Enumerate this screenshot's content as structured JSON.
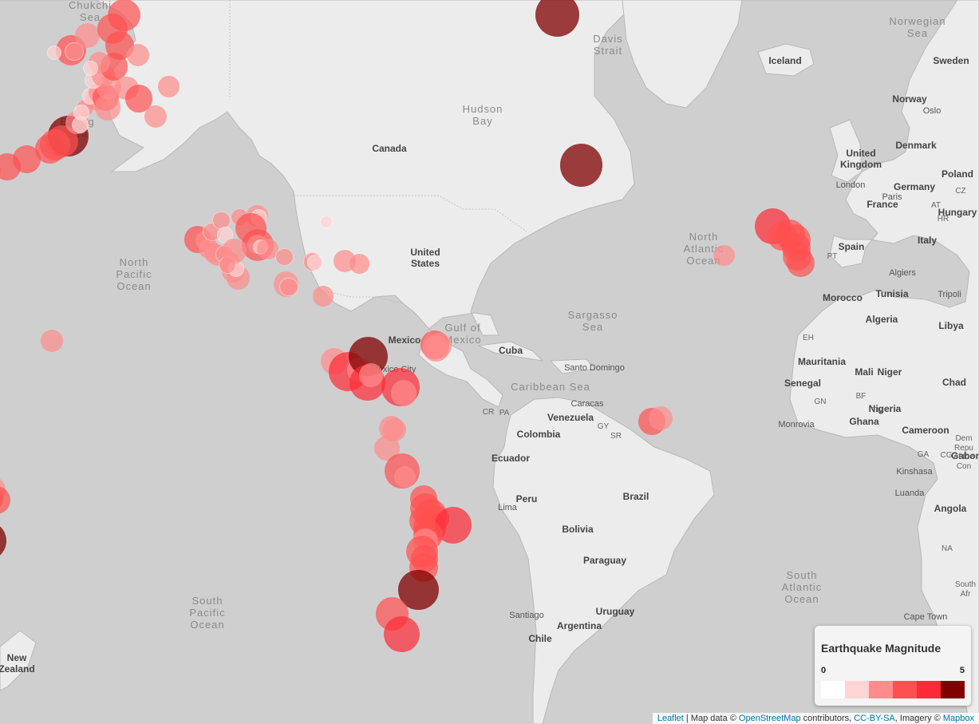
{
  "map": {
    "ocean_labels": [
      {
        "name": "north-pacific-ocean",
        "text": "North\nPacific\nOcean"
      },
      {
        "name": "north-atlantic-ocean",
        "text": "North\nAtlantic\nOcean"
      },
      {
        "name": "south-pacific-ocean",
        "text": "South\nPacific\nOcean"
      },
      {
        "name": "south-atlantic-ocean",
        "text": "South\nAtlantic\nOcean"
      },
      {
        "name": "bering-sea",
        "text": "Bering\nSea"
      },
      {
        "name": "chukchi-sea",
        "text": "Chukchi\nSea"
      },
      {
        "name": "hudson-bay",
        "text": "Hudson\nBay"
      },
      {
        "name": "gulf-of-mexico",
        "text": "Gulf of\nMexico"
      },
      {
        "name": "sargasso-sea",
        "text": "Sargasso\nSea"
      },
      {
        "name": "caribbean-sea",
        "text": "Caribbean Sea"
      },
      {
        "name": "davis-strait",
        "text": "Davis\nStrait"
      },
      {
        "name": "norwegian-sea",
        "text": "Norwegian\nSea"
      }
    ],
    "country_labels": [
      "Canada",
      "United\nStates",
      "Mexico",
      "Cuba",
      "Venezuela",
      "Colombia",
      "Ecuador",
      "Peru",
      "Brazil",
      "Bolivia",
      "Paraguay",
      "Uruguay",
      "Argentina",
      "Chile",
      "Iceland",
      "Norway",
      "Sweden",
      "Denmark",
      "United\nKingdom",
      "Germany",
      "Poland",
      "France",
      "Spain",
      "Italy",
      "Hungary",
      "Morocco",
      "Algeria",
      "Libya",
      "Tunisia",
      "Mali",
      "Niger",
      "Chad",
      "Mauritania",
      "Senegal",
      "Nigeria",
      "Cameroon",
      "Angola",
      "Ghana",
      "Gabon",
      "New\nZealand"
    ],
    "small_labels": [
      "GY",
      "SR",
      "PA",
      "CR",
      "PT",
      "AT",
      "CZ",
      "HR",
      "GN",
      "BF",
      "TG",
      "GA",
      "CG",
      "NA",
      "EH",
      "Dem\nRepu\nof the\nCon",
      "South\nAfr"
    ],
    "city_labels": [
      "Mexico City",
      "Caracas",
      "Santo Domingo",
      "Lima",
      "Santiago",
      "Kinshasa",
      "Luanda",
      "Cape Town",
      "London",
      "Paris",
      "Oslo",
      "Algiers",
      "Tripoli",
      "Monrovia"
    ]
  },
  "quakes": [
    {
      "lon": -178.2,
      "lat": 51.3,
      "mag": 3.2
    },
    {
      "lon": -176.9,
      "lat": 51.6,
      "mag": 2.4
    },
    {
      "lon": -175.6,
      "lat": 51.9,
      "mag": 2.6
    },
    {
      "lon": -171.3,
      "lat": 52.4,
      "mag": 3.0
    },
    {
      "lon": -166.6,
      "lat": 53.5,
      "mag": 3.1
    },
    {
      "lon": -161.0,
      "lat": 55.0,
      "mag": 3.3
    },
    {
      "lon": -156.6,
      "lat": 56.7,
      "mag": 4.6
    },
    {
      "lon": -158.1,
      "lat": 56.0,
      "mag": 3.6
    },
    {
      "lon": -159.8,
      "lat": 55.5,
      "mag": 3.4
    },
    {
      "lon": -154.5,
      "lat": 58.4,
      "mag": 2.6
    },
    {
      "lon": -152.6,
      "lat": 60.2,
      "mag": 2.1
    },
    {
      "lon": -150.0,
      "lat": 61.2,
      "mag": 2.4
    },
    {
      "lon": -151.4,
      "lat": 61.6,
      "mag": 1.8
    },
    {
      "lon": -149.3,
      "lat": 62.0,
      "mag": 2.2
    },
    {
      "lon": -147.6,
      "lat": 61.4,
      "mag": 3.0
    },
    {
      "lon": -146.8,
      "lat": 62.6,
      "mag": 2.8
    },
    {
      "lon": -150.6,
      "lat": 63.4,
      "mag": 1.9
    },
    {
      "lon": -148.1,
      "lat": 63.9,
      "mag": 2.6
    },
    {
      "lon": -145.6,
      "lat": 64.8,
      "mag": 3.1
    },
    {
      "lon": -149.2,
      "lat": 65.2,
      "mag": 2.4
    },
    {
      "lon": -155.9,
      "lat": 66.4,
      "mag": 3.4
    },
    {
      "lon": -155.2,
      "lat": 66.3,
      "mag": 2.1
    },
    {
      "lon": -152.0,
      "lat": 67.8,
      "mag": 2.8
    },
    {
      "lon": -145.9,
      "lat": 68.4,
      "mag": 3.4
    },
    {
      "lon": -143.2,
      "lat": 69.6,
      "mag": 3.6
    },
    {
      "lon": -144.3,
      "lat": 66.9,
      "mag": 3.2
    },
    {
      "lon": -139.8,
      "lat": 66.0,
      "mag": 2.5
    },
    {
      "lon": -142.5,
      "lat": 62.5,
      "mag": 2.6
    },
    {
      "lon": -139.6,
      "lat": 61.3,
      "mag": 3.1
    },
    {
      "lon": -135.5,
      "lat": 59.2,
      "mag": 2.5
    },
    {
      "lon": -132.4,
      "lat": 62.7,
      "mag": 2.4
    },
    {
      "lon": -147.1,
      "lat": 60.3,
      "mag": 2.9
    },
    {
      "lon": -153.5,
      "lat": 59.7,
      "mag": 1.8
    },
    {
      "lon": -151.2,
      "lat": 64.6,
      "mag": 1.7
    },
    {
      "lon": -160.0,
      "lat": 66.2,
      "mag": 1.6
    },
    {
      "lon": -153.8,
      "lat": 58.1,
      "mag": 1.9
    },
    {
      "lon": -125.5,
      "lat": 40.4,
      "mag": 3.0
    },
    {
      "lon": -123.5,
      "lat": 40.2,
      "mag": 2.2
    },
    {
      "lon": -122.8,
      "lat": 38.8,
      "mag": 2.3
    },
    {
      "lon": -121.4,
      "lat": 37.8,
      "mag": 2.2
    },
    {
      "lon": -120.5,
      "lat": 37.4,
      "mag": 2.4
    },
    {
      "lon": -118.9,
      "lat": 37.6,
      "mag": 2.1
    },
    {
      "lon": -117.6,
      "lat": 36.0,
      "mag": 2.3
    },
    {
      "lon": -116.9,
      "lat": 34.3,
      "mag": 2.5
    },
    {
      "lon": -115.6,
      "lat": 33.0,
      "mag": 2.6
    },
    {
      "lon": -116.2,
      "lat": 34.7,
      "mag": 1.8
    },
    {
      "lon": -118.3,
      "lat": 35.5,
      "mag": 2.0
    },
    {
      "lon": -121.9,
      "lat": 41.8,
      "mag": 2.1
    },
    {
      "lon": -119.7,
      "lat": 43.8,
      "mag": 2.0
    },
    {
      "lon": -118.9,
      "lat": 41.2,
      "mag": 1.8
    },
    {
      "lon": -115.3,
      "lat": 44.4,
      "mag": 2.0
    },
    {
      "lon": -111.1,
      "lat": 44.6,
      "mag": 2.4
    },
    {
      "lon": -110.7,
      "lat": 44.3,
      "mag": 1.9
    },
    {
      "lon": -112.6,
      "lat": 42.4,
      "mag": 3.4
    },
    {
      "lon": -110.9,
      "lat": 39.4,
      "mag": 3.6
    },
    {
      "lon": -111.0,
      "lat": 39.5,
      "mag": 2.2
    },
    {
      "lon": -110.2,
      "lat": 39.0,
      "mag": 1.7
    },
    {
      "lon": -108.6,
      "lat": 38.6,
      "mag": 2.4
    },
    {
      "lon": -116.6,
      "lat": 38.2,
      "mag": 2.8
    },
    {
      "lon": -104.5,
      "lat": 37.1,
      "mag": 2.0
    },
    {
      "lon": -97.8,
      "lat": 36.2,
      "mag": 2.1
    },
    {
      "lon": -97.1,
      "lat": 36.0,
      "mag": 1.8
    },
    {
      "lon": -90.0,
      "lat": 36.3,
      "mag": 2.5
    },
    {
      "lon": -86.5,
      "lat": 35.8,
      "mag": 2.2
    },
    {
      "lon": -104.1,
      "lat": 31.7,
      "mag": 2.8
    },
    {
      "lon": -103.5,
      "lat": 31.1,
      "mag": 2.1
    },
    {
      "lon": -95.2,
      "lat": 29.2,
      "mag": 2.3
    },
    {
      "lon": -94.4,
      "lat": 43.5,
      "mag": 1.4
    },
    {
      "lon": -92.6,
      "lat": 14.7,
      "mag": 2.9
    },
    {
      "lon": -89.2,
      "lat": 12.3,
      "mag": 4.3
    },
    {
      "lon": -86.4,
      "lat": 12.7,
      "mag": 2.8
    },
    {
      "lon": -84.3,
      "lat": 15.8,
      "mag": 4.4
    },
    {
      "lon": -84.5,
      "lat": 9.6,
      "mag": 4.0
    },
    {
      "lon": -83.6,
      "lat": 11.4,
      "mag": 2.7
    },
    {
      "lon": -76.6,
      "lat": 8.6,
      "mag": 4.3
    },
    {
      "lon": -75.8,
      "lat": 7.2,
      "mag": 2.9
    },
    {
      "lon": -68.3,
      "lat": 18.5,
      "mag": 3.2
    },
    {
      "lon": -68.0,
      "lat": 17.7,
      "mag": 2.9
    },
    {
      "lon": -67.2,
      "lat": 18.3,
      "mag": 2.8
    },
    {
      "lon": -78.8,
      "lat": -1.2,
      "mag": 2.8
    },
    {
      "lon": -78.0,
      "lat": -1.6,
      "mag": 2.6
    },
    {
      "lon": -79.8,
      "lat": -6.1,
      "mag": 2.8
    },
    {
      "lon": -76.1,
      "lat": -11.5,
      "mag": 3.9
    },
    {
      "lon": -75.5,
      "lat": -12.8,
      "mag": 2.4
    },
    {
      "lon": -71.0,
      "lat": -17.9,
      "mag": 3.0
    },
    {
      "lon": -70.6,
      "lat": -20.1,
      "mag": 3.4
    },
    {
      "lon": -69.2,
      "lat": -21.6,
      "mag": 3.6
    },
    {
      "lon": -68.0,
      "lat": -22.4,
      "mag": 3.0
    },
    {
      "lon": -70.8,
      "lat": -23.0,
      "mag": 3.3
    },
    {
      "lon": -69.5,
      "lat": -24.5,
      "mag": 3.6
    },
    {
      "lon": -63.8,
      "lat": -23.9,
      "mag": 4.1
    },
    {
      "lon": -69.9,
      "lat": -26.1,
      "mag": 3.3
    },
    {
      "lon": -70.6,
      "lat": -27.4,
      "mag": 2.9
    },
    {
      "lon": -71.4,
      "lat": -29.6,
      "mag": 3.6
    },
    {
      "lon": -70.8,
      "lat": -31.0,
      "mag": 3.0
    },
    {
      "lon": -70.9,
      "lat": -32.9,
      "mag": 3.2
    },
    {
      "lon": -72.2,
      "lat": -37.2,
      "mag": 4.5
    },
    {
      "lon": -78.6,
      "lat": -41.7,
      "mag": 3.7
    },
    {
      "lon": -76.2,
      "lat": -45.3,
      "mag": 4.0
    },
    {
      "lon": -38.8,
      "lat": 69.6,
      "mag": 4.9
    },
    {
      "lon": -33.0,
      "lat": 52.6,
      "mag": 4.8
    },
    {
      "lon": -16.0,
      "lat": 0.4,
      "mag": 3.0
    },
    {
      "lon": -13.8,
      "lat": 1.1,
      "mag": 2.7
    },
    {
      "lon": -160.6,
      "lat": 19.4,
      "mag": 2.5
    },
    {
      "lon": -176.5,
      "lat": -15.6,
      "mag": 2.9
    },
    {
      "lon": -174.7,
      "lat": -15.8,
      "mag": 2.7
    },
    {
      "lon": -175.6,
      "lat": -17.8,
      "mag": 3.0
    },
    {
      "lon": -173.9,
      "lat": -18.3,
      "mag": 3.1
    },
    {
      "lon": -178.7,
      "lat": -22.6,
      "mag": 3.0
    },
    {
      "lon": -178.1,
      "lat": -27.4,
      "mag": 3.3
    },
    {
      "lon": -176.2,
      "lat": -27.3,
      "mag": 4.4
    },
    {
      "lon": 13.1,
      "lat": 42.8,
      "mag": 4.0
    },
    {
      "lon": 15.4,
      "lat": 41.0,
      "mag": 3.3
    },
    {
      "lon": 17.3,
      "lat": 41.2,
      "mag": 3.4
    },
    {
      "lon": 18.6,
      "lat": 40.3,
      "mag": 3.5
    },
    {
      "lon": 18.8,
      "lat": 38.9,
      "mag": 3.2
    },
    {
      "lon": 19.0,
      "lat": 37.2,
      "mag": 3.2
    },
    {
      "lon": 19.9,
      "lat": 35.9,
      "mag": 3.1
    },
    {
      "lon": 1.5,
      "lat": 37.4,
      "mag": 2.4
    }
  ],
  "legend": {
    "title": "Earthquake Magnitude",
    "min_label": "0",
    "max_label": "5",
    "colors": [
      "#ffffff",
      "#ffd4d4",
      "#ff8c8c",
      "#ff5050",
      "#ff2a36",
      "#800000"
    ]
  },
  "attribution": {
    "leaflet": "Leaflet",
    "text1": " | Map data © ",
    "osm": "OpenStreetMap",
    "text2": " contributors, ",
    "ccbysa": "CC-BY-SA",
    "text3": ", Imagery © ",
    "mapbox": "Mapbox"
  }
}
